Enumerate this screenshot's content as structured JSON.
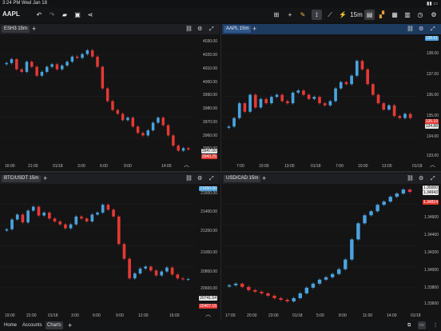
{
  "status": {
    "time": "3:24 PM",
    "date": "Wed Jan 18"
  },
  "toolbar": {
    "symbol": "AAPL",
    "interval": "15m"
  },
  "panels": [
    {
      "tab": "ESH3 15m",
      "prices": [
        "4030.00",
        "4020.00",
        "4010.00",
        "4000.00",
        "3990.00",
        "3980.00",
        "3970.00",
        "3960.00",
        "3950.00"
      ],
      "times": [
        "16:00",
        "21:00",
        "01/18",
        "3:00",
        "6:00",
        "9:00",
        "14:00"
      ],
      "tag1": "3947.00",
      "tag2": "3943.25"
    },
    {
      "tab": "AAPL 15m",
      "prices": [
        "138.00",
        "137.00",
        "136.00",
        "135.00",
        "134.00",
        "133.00"
      ],
      "times": [
        "7:00",
        "10:00",
        "13:00",
        "01/18",
        "7:00",
        "10:00",
        "13:00",
        "01/18"
      ],
      "tag1": "138.61",
      "tag2": "135.10",
      "tag3": "134.88"
    },
    {
      "tab": "BTC/USDT 15m",
      "prices": [
        "21600.00",
        "21400.00",
        "21200.00",
        "21000.00",
        "20800.00",
        "20600.00"
      ],
      "times": [
        "19:00",
        "22:00",
        "01/18",
        "3:00",
        "6:00",
        "9:00",
        "12:00",
        "16:00"
      ],
      "tag1": "21650.00",
      "tag2": "20741.54",
      "tag3": "20407.15"
    },
    {
      "tab": "USD/CAD 15m",
      "prices": [
        "1.34600",
        "1.34400",
        "1.34200",
        "1.34000",
        "1.33800",
        "1.33600"
      ],
      "times": [
        "17:00",
        "20:00",
        "23:00",
        "01/18",
        "5:00",
        "8:00",
        "11:00",
        "14:00",
        "01/18"
      ],
      "tag1": "1.35000",
      "tag2": "1.34943",
      "tag3": "1.34814"
    }
  ],
  "bottom": {
    "tabs": [
      "Home",
      "Accounts",
      "Charts"
    ]
  },
  "colors": {
    "up": "#4aa3df",
    "down": "#e53935",
    "bg": "#141414",
    "active": "#1d3a5f"
  },
  "chart_data": [
    {
      "type": "candlestick",
      "title": "ESH3 15m",
      "ylim": [
        3940,
        4035
      ],
      "close": [
        4015,
        4018,
        4010,
        4008,
        4016,
        4012,
        4005,
        4008,
        4012,
        4014,
        4010,
        4013,
        4016,
        4020,
        4019,
        4022,
        4025,
        4020,
        4012,
        3995,
        3985,
        3978,
        3975,
        3970,
        3972,
        3965,
        3960,
        3958,
        3962,
        3968,
        3972,
        3966,
        3958,
        3950,
        3946,
        3948,
        3947
      ]
    },
    {
      "type": "candlestick",
      "title": "AAPL 15m",
      "ylim": [
        133,
        138.7
      ],
      "close": [
        134.5,
        134.9,
        135.6,
        135.2,
        136.0,
        135.4,
        135.8,
        135.6,
        135.9,
        136.0,
        135.7,
        135.6,
        136.1,
        136.2,
        136.0,
        135.8,
        135.9,
        135.6,
        135.5,
        135.7,
        136.3,
        136.6,
        136.5,
        136.9,
        137.6,
        137.2,
        136.5,
        136.0,
        135.6,
        135.3,
        135.5,
        135.0,
        134.9,
        135.1,
        134.9
      ]
    },
    {
      "type": "candlestick",
      "title": "BTC/USDT 15m",
      "ylim": [
        20450,
        21680
      ],
      "close": [
        21250,
        21350,
        21400,
        21320,
        21440,
        21480,
        21390,
        21420,
        21360,
        21330,
        21300,
        21260,
        21300,
        21380,
        21360,
        21330,
        21400,
        21420,
        21500,
        21450,
        21380,
        21100,
        20950,
        20750,
        20800,
        20850,
        20870,
        20830,
        20780,
        20820,
        20860,
        20790,
        20750,
        20740,
        20742
      ]
    },
    {
      "type": "candlestick",
      "title": "USD/CAD 15m",
      "ylim": [
        1.335,
        1.35
      ],
      "close": [
        1.3378,
        1.338,
        1.3376,
        1.3372,
        1.337,
        1.3368,
        1.3365,
        1.3362,
        1.336,
        1.3358,
        1.3362,
        1.3368,
        1.3375,
        1.338,
        1.3385,
        1.3388,
        1.3392,
        1.3398,
        1.341,
        1.3435,
        1.3455,
        1.3465,
        1.347,
        1.3478,
        1.3482,
        1.3488,
        1.3492,
        1.3497,
        1.3494
      ]
    }
  ]
}
